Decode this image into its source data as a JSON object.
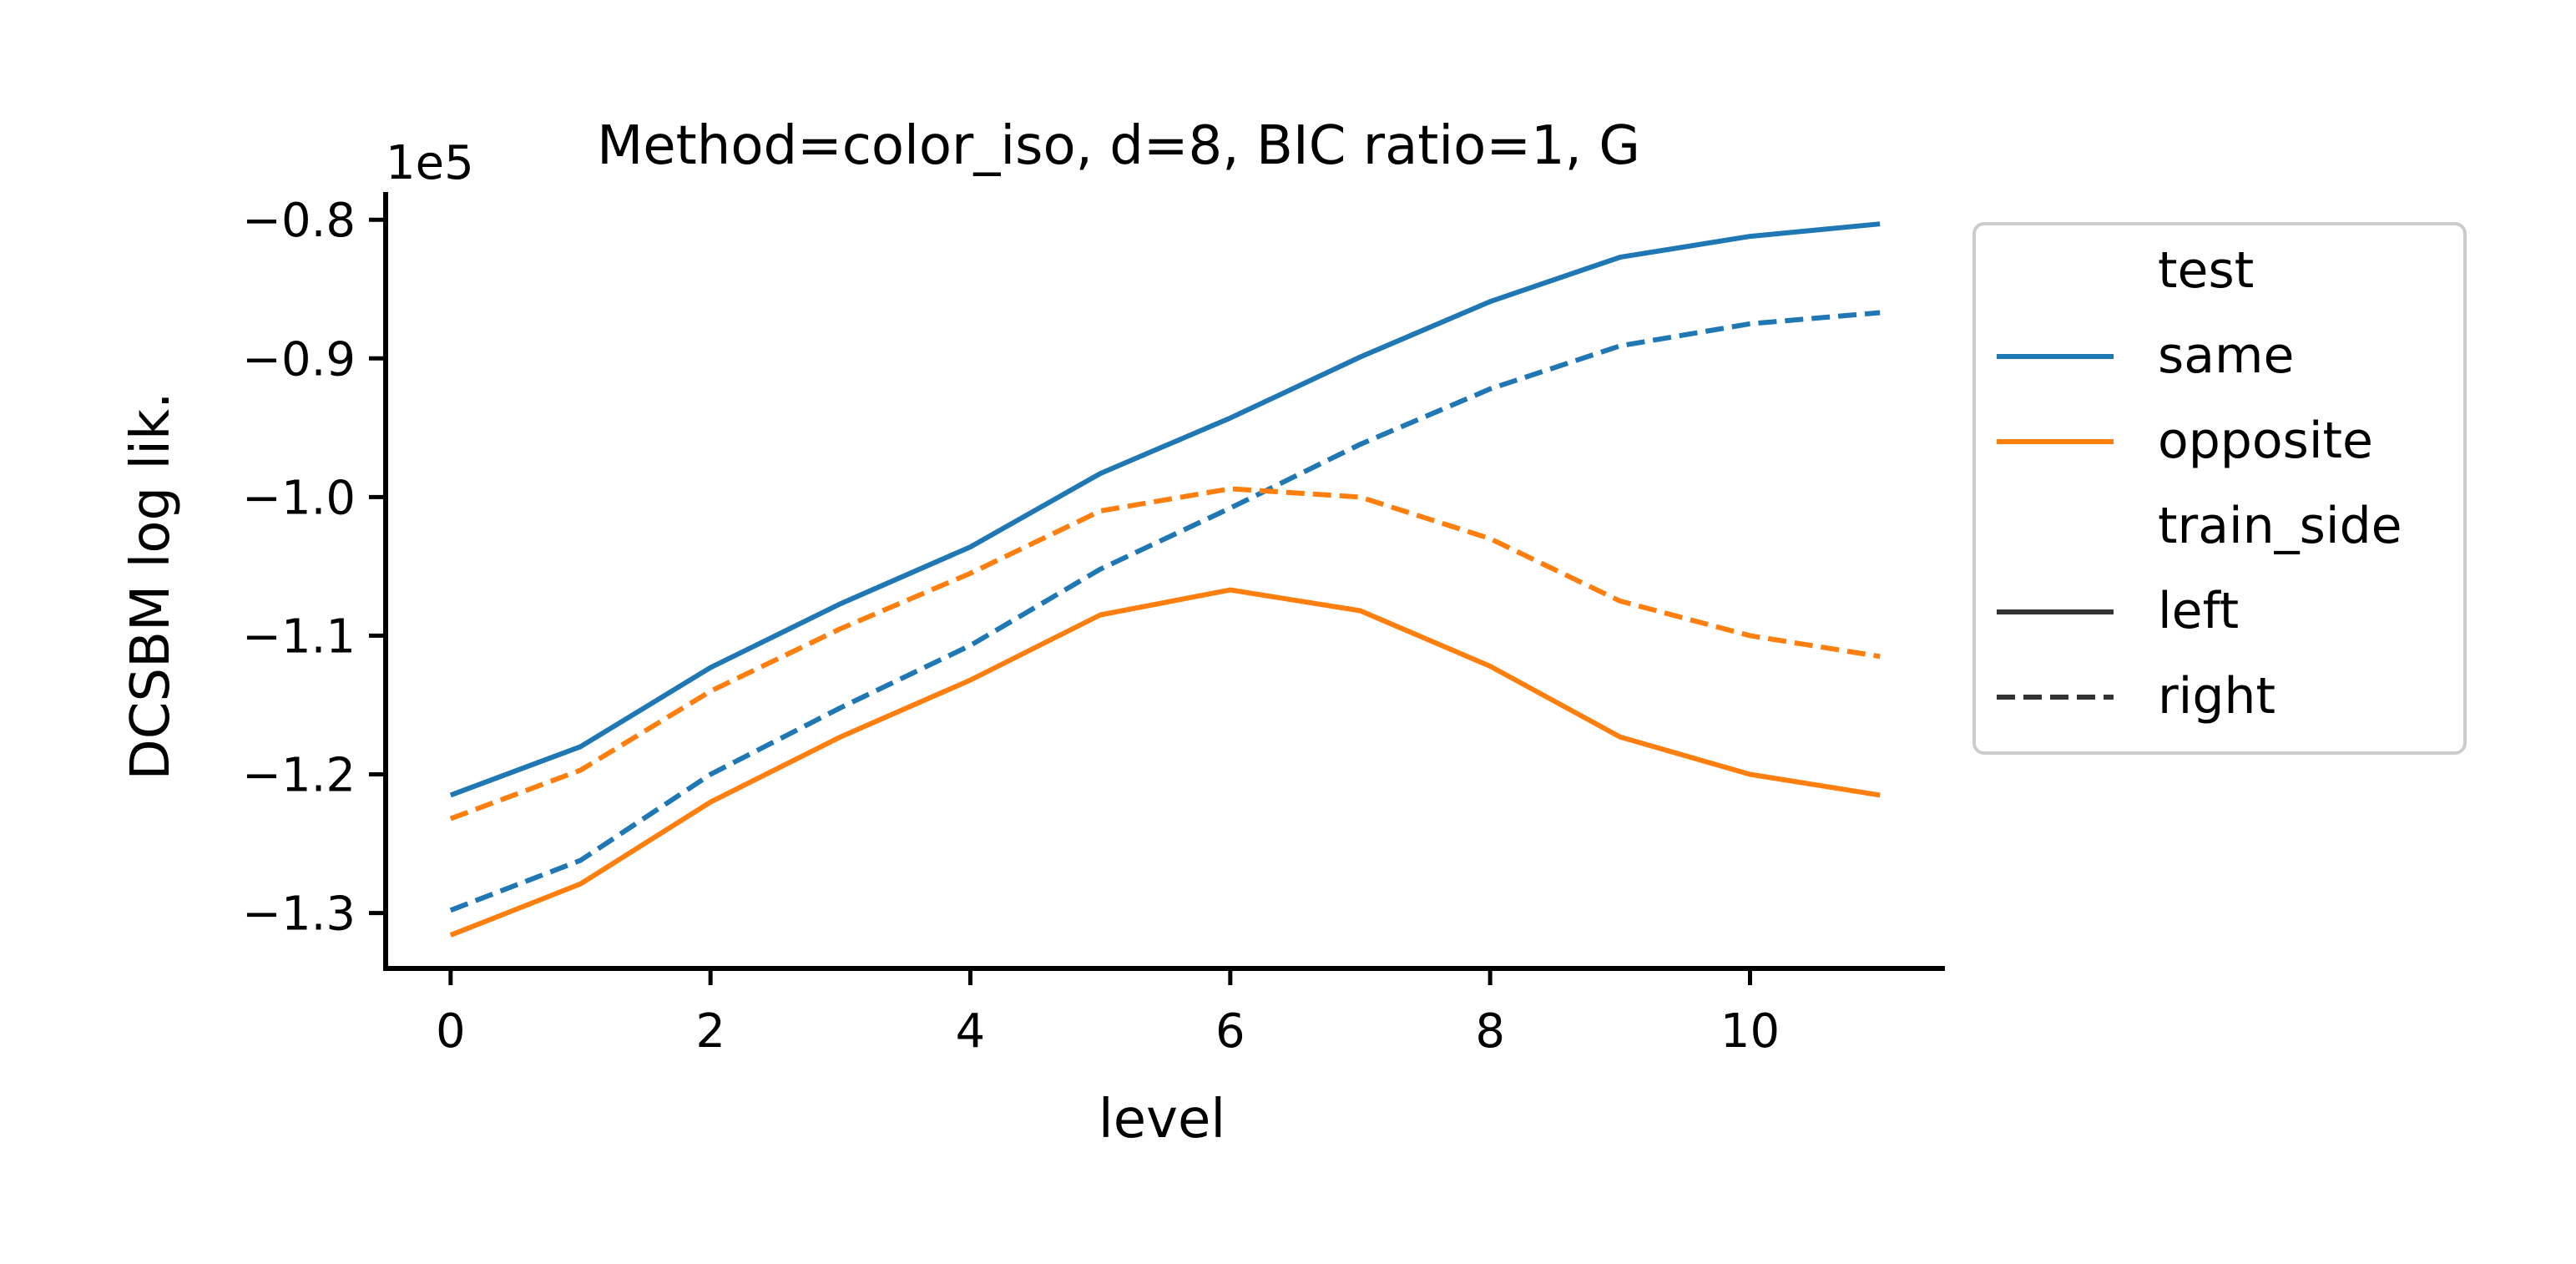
{
  "chart_data": {
    "type": "line",
    "title": "Method=color_iso, d=8, BIC ratio=1, G",
    "xlabel": "level",
    "ylabel": "DCSBM log lik.",
    "y_offset_label": "1e5",
    "xlim": [
      -0.5,
      11.5
    ],
    "ylim": [
      -1.34,
      -0.78
    ],
    "x_ticks": [
      0,
      2,
      4,
      6,
      8,
      10
    ],
    "x_tick_labels": [
      "0",
      "2",
      "4",
      "6",
      "8",
      "10"
    ],
    "y_ticks": [
      -1.3,
      -1.2,
      -1.1,
      -1.0,
      -0.9,
      -0.8
    ],
    "y_tick_labels": [
      "−1.3",
      "−1.2",
      "−1.1",
      "−1.0",
      "−0.9",
      "−0.8"
    ],
    "grid": false,
    "legend_placement": "outside-right",
    "x": [
      0,
      1,
      2,
      3,
      4,
      5,
      6,
      7,
      8,
      9,
      10,
      11
    ],
    "series": [
      {
        "test": "same",
        "train_side": "left",
        "color": "#1f77b4",
        "dash": "solid",
        "values": [
          -1.215,
          -1.18,
          -1.123,
          -1.077,
          -1.036,
          -0.983,
          -0.943,
          -0.899,
          -0.859,
          -0.827,
          -0.812,
          -0.803
        ]
      },
      {
        "test": "same",
        "train_side": "right",
        "color": "#1f77b4",
        "dash": "dashed",
        "values": [
          -1.298,
          -1.262,
          -1.2,
          -1.152,
          -1.107,
          -1.052,
          -1.008,
          -0.962,
          -0.922,
          -0.891,
          -0.875,
          -0.867
        ]
      },
      {
        "test": "opposite",
        "train_side": "left",
        "color": "#ff7f0e",
        "dash": "solid",
        "values": [
          -1.316,
          -1.279,
          -1.22,
          -1.173,
          -1.132,
          -1.085,
          -1.067,
          -1.082,
          -1.122,
          -1.173,
          -1.2,
          -1.215
        ]
      },
      {
        "test": "opposite",
        "train_side": "right",
        "color": "#ff7f0e",
        "dash": "dashed",
        "values": [
          -1.232,
          -1.197,
          -1.14,
          -1.095,
          -1.055,
          -1.01,
          -0.994,
          -1.0,
          -1.03,
          -1.075,
          -1.1,
          -1.115
        ]
      }
    ],
    "legend": {
      "entries": [
        {
          "label": "test",
          "kind": "header"
        },
        {
          "label": "same",
          "kind": "line",
          "color": "#1f77b4",
          "dash": "solid"
        },
        {
          "label": "opposite",
          "kind": "line",
          "color": "#ff7f0e",
          "dash": "solid"
        },
        {
          "label": "train_side",
          "kind": "header"
        },
        {
          "label": "left",
          "kind": "line",
          "color": "#333333",
          "dash": "solid"
        },
        {
          "label": "right",
          "kind": "line",
          "color": "#333333",
          "dash": "dashed"
        }
      ]
    }
  }
}
